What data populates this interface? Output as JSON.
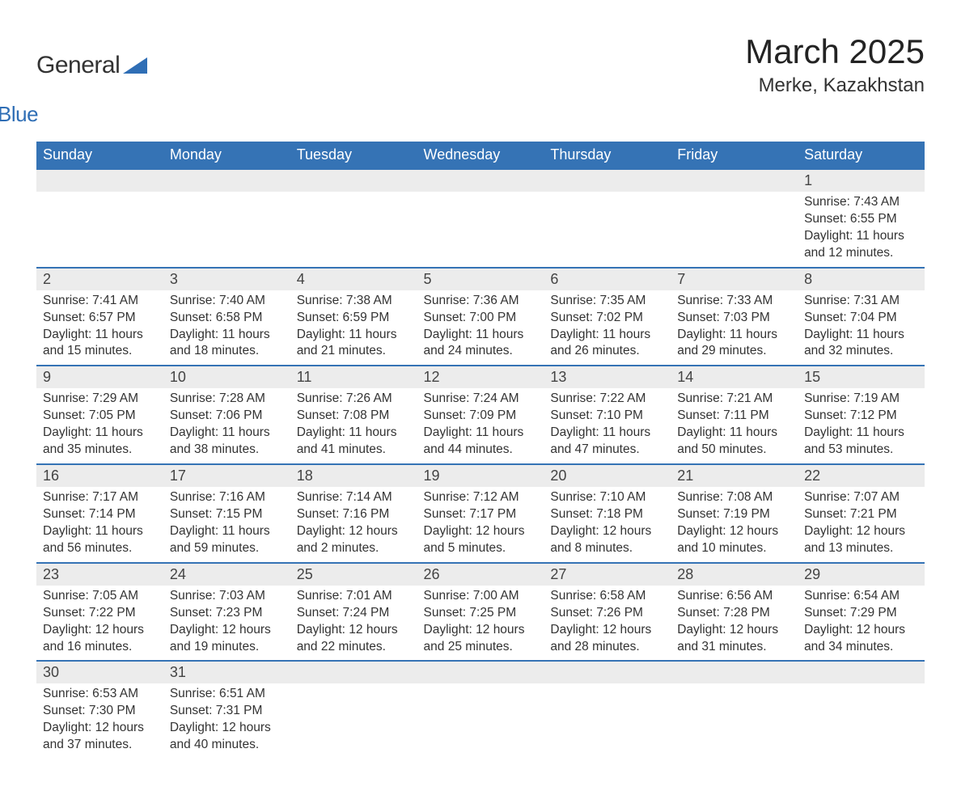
{
  "logo": {
    "part1": "General",
    "part2": "Blue"
  },
  "title": "March 2025",
  "location": "Merke, Kazakhstan",
  "colors": {
    "header_bg": "#3573b5",
    "header_text": "#ffffff",
    "daynum_bg": "#ececec",
    "row_divider": "#3573b5",
    "body_text": "#333333",
    "page_bg": "#ffffff",
    "logo_accent": "#2f6eb5"
  },
  "typography": {
    "month_title_fontsize": 42,
    "location_fontsize": 24,
    "weekday_fontsize": 18,
    "daynum_fontsize": 18,
    "body_fontsize": 15.5
  },
  "weekdays": [
    "Sunday",
    "Monday",
    "Tuesday",
    "Wednesday",
    "Thursday",
    "Friday",
    "Saturday"
  ],
  "labels": {
    "sunrise": "Sunrise: ",
    "sunset": "Sunset: ",
    "daylight": "Daylight: "
  },
  "weeks": [
    [
      null,
      null,
      null,
      null,
      null,
      null,
      {
        "n": "1",
        "sr": "7:43 AM",
        "ss": "6:55 PM",
        "dl": "11 hours and 12 minutes."
      }
    ],
    [
      {
        "n": "2",
        "sr": "7:41 AM",
        "ss": "6:57 PM",
        "dl": "11 hours and 15 minutes."
      },
      {
        "n": "3",
        "sr": "7:40 AM",
        "ss": "6:58 PM",
        "dl": "11 hours and 18 minutes."
      },
      {
        "n": "4",
        "sr": "7:38 AM",
        "ss": "6:59 PM",
        "dl": "11 hours and 21 minutes."
      },
      {
        "n": "5",
        "sr": "7:36 AM",
        "ss": "7:00 PM",
        "dl": "11 hours and 24 minutes."
      },
      {
        "n": "6",
        "sr": "7:35 AM",
        "ss": "7:02 PM",
        "dl": "11 hours and 26 minutes."
      },
      {
        "n": "7",
        "sr": "7:33 AM",
        "ss": "7:03 PM",
        "dl": "11 hours and 29 minutes."
      },
      {
        "n": "8",
        "sr": "7:31 AM",
        "ss": "7:04 PM",
        "dl": "11 hours and 32 minutes."
      }
    ],
    [
      {
        "n": "9",
        "sr": "7:29 AM",
        "ss": "7:05 PM",
        "dl": "11 hours and 35 minutes."
      },
      {
        "n": "10",
        "sr": "7:28 AM",
        "ss": "7:06 PM",
        "dl": "11 hours and 38 minutes."
      },
      {
        "n": "11",
        "sr": "7:26 AM",
        "ss": "7:08 PM",
        "dl": "11 hours and 41 minutes."
      },
      {
        "n": "12",
        "sr": "7:24 AM",
        "ss": "7:09 PM",
        "dl": "11 hours and 44 minutes."
      },
      {
        "n": "13",
        "sr": "7:22 AM",
        "ss": "7:10 PM",
        "dl": "11 hours and 47 minutes."
      },
      {
        "n": "14",
        "sr": "7:21 AM",
        "ss": "7:11 PM",
        "dl": "11 hours and 50 minutes."
      },
      {
        "n": "15",
        "sr": "7:19 AM",
        "ss": "7:12 PM",
        "dl": "11 hours and 53 minutes."
      }
    ],
    [
      {
        "n": "16",
        "sr": "7:17 AM",
        "ss": "7:14 PM",
        "dl": "11 hours and 56 minutes."
      },
      {
        "n": "17",
        "sr": "7:16 AM",
        "ss": "7:15 PM",
        "dl": "11 hours and 59 minutes."
      },
      {
        "n": "18",
        "sr": "7:14 AM",
        "ss": "7:16 PM",
        "dl": "12 hours and 2 minutes."
      },
      {
        "n": "19",
        "sr": "7:12 AM",
        "ss": "7:17 PM",
        "dl": "12 hours and 5 minutes."
      },
      {
        "n": "20",
        "sr": "7:10 AM",
        "ss": "7:18 PM",
        "dl": "12 hours and 8 minutes."
      },
      {
        "n": "21",
        "sr": "7:08 AM",
        "ss": "7:19 PM",
        "dl": "12 hours and 10 minutes."
      },
      {
        "n": "22",
        "sr": "7:07 AM",
        "ss": "7:21 PM",
        "dl": "12 hours and 13 minutes."
      }
    ],
    [
      {
        "n": "23",
        "sr": "7:05 AM",
        "ss": "7:22 PM",
        "dl": "12 hours and 16 minutes."
      },
      {
        "n": "24",
        "sr": "7:03 AM",
        "ss": "7:23 PM",
        "dl": "12 hours and 19 minutes."
      },
      {
        "n": "25",
        "sr": "7:01 AM",
        "ss": "7:24 PM",
        "dl": "12 hours and 22 minutes."
      },
      {
        "n": "26",
        "sr": "7:00 AM",
        "ss": "7:25 PM",
        "dl": "12 hours and 25 minutes."
      },
      {
        "n": "27",
        "sr": "6:58 AM",
        "ss": "7:26 PM",
        "dl": "12 hours and 28 minutes."
      },
      {
        "n": "28",
        "sr": "6:56 AM",
        "ss": "7:28 PM",
        "dl": "12 hours and 31 minutes."
      },
      {
        "n": "29",
        "sr": "6:54 AM",
        "ss": "7:29 PM",
        "dl": "12 hours and 34 minutes."
      }
    ],
    [
      {
        "n": "30",
        "sr": "6:53 AM",
        "ss": "7:30 PM",
        "dl": "12 hours and 37 minutes."
      },
      {
        "n": "31",
        "sr": "6:51 AM",
        "ss": "7:31 PM",
        "dl": "12 hours and 40 minutes."
      },
      null,
      null,
      null,
      null,
      null
    ]
  ]
}
